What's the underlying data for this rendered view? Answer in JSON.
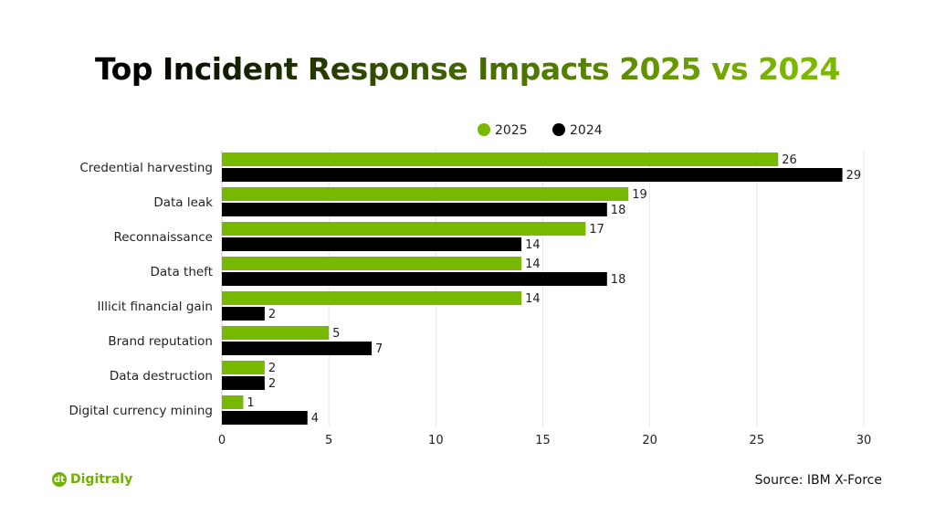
{
  "chart_data": {
    "type": "bar",
    "orientation": "horizontal",
    "title": "Top Incident Response Impacts 2025 vs 2024",
    "categories": [
      "Credential harvesting",
      "Data leak",
      "Reconnaissance",
      "Data theft",
      "Illicit financial gain",
      "Brand reputation",
      "Data destruction",
      "Digital currency mining"
    ],
    "series": [
      {
        "name": "2025",
        "color": "#76b900",
        "values": [
          26,
          19,
          17,
          14,
          14,
          5,
          2,
          1
        ]
      },
      {
        "name": "2024",
        "color": "#000000",
        "values": [
          29,
          18,
          14,
          18,
          2,
          7,
          2,
          4
        ]
      }
    ],
    "xlim": [
      0,
      30
    ],
    "xticks": [
      0,
      5,
      10,
      15,
      20,
      25,
      30
    ],
    "grid": true,
    "legend": "top"
  },
  "footer": {
    "brand": "Digitraly",
    "source": "Source: IBM X-Force"
  }
}
